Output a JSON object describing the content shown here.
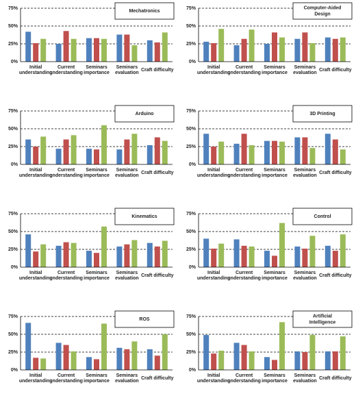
{
  "chart_data": [
    {
      "type": "bar",
      "title": "Mechatronics",
      "categories": [
        "Initial understanding",
        "Current understanding",
        "Seminars importance",
        "Seminars evaluation",
        "Craft difficulty"
      ],
      "series": [
        {
          "color": "#4f81bd",
          "values": [
            42,
            25,
            33,
            38,
            30
          ]
        },
        {
          "color": "#c0504d",
          "values": [
            26,
            43,
            33,
            38,
            27
          ]
        },
        {
          "color": "#9bbb59",
          "values": [
            32,
            32,
            32,
            23,
            41
          ]
        }
      ],
      "ylim": [
        0,
        75
      ],
      "yticks": [
        {
          "value": 0,
          "label": "0%"
        },
        {
          "value": 25,
          "label": "25%"
        },
        {
          "value": 50,
          "label": "50%"
        },
        {
          "value": 75,
          "label": "75%"
        }
      ],
      "grid": true
    },
    {
      "type": "bar",
      "title": "Computer-Aided Design",
      "categories": [
        "Initial understanding",
        "Current understanding",
        "Seminars importance",
        "Seminars evaluation",
        "Craft difficulty"
      ],
      "series": [
        {
          "color": "#4f81bd",
          "values": [
            28,
            23,
            25,
            32,
            34
          ]
        },
        {
          "color": "#c0504d",
          "values": [
            26,
            32,
            41,
            41,
            32
          ]
        },
        {
          "color": "#9bbb59",
          "values": [
            46,
            45,
            34,
            26,
            34
          ]
        }
      ],
      "ylim": [
        0,
        75
      ],
      "yticks": [
        {
          "value": 0,
          "label": "0%"
        },
        {
          "value": 25,
          "label": "25%"
        },
        {
          "value": 50,
          "label": "50%"
        },
        {
          "value": 75,
          "label": "75%"
        }
      ],
      "grid": true
    },
    {
      "type": "bar",
      "title": "Arduino",
      "categories": [
        "Initial understanding",
        "Current understanding",
        "Seminars importance",
        "Seminars evaluation",
        "Craft difficulty"
      ],
      "series": [
        {
          "color": "#4f81bd",
          "values": [
            35,
            22,
            22,
            21,
            27
          ]
        },
        {
          "color": "#c0504d",
          "values": [
            25,
            35,
            21,
            35,
            38
          ]
        },
        {
          "color": "#9bbb59",
          "values": [
            39,
            41,
            55,
            43,
            33
          ]
        }
      ],
      "ylim": [
        0,
        75
      ],
      "yticks": [
        {
          "value": 0,
          "label": "0%"
        },
        {
          "value": 25,
          "label": "25%"
        },
        {
          "value": 50,
          "label": "50%"
        },
        {
          "value": 75,
          "label": "75%"
        }
      ],
      "grid": true
    },
    {
      "type": "bar",
      "title": "3D Printing",
      "categories": [
        "Initial understanding",
        "Current understanding",
        "Seminars importance",
        "Seminars evaluation",
        "Craft difficulty"
      ],
      "series": [
        {
          "color": "#4f81bd",
          "values": [
            43,
            29,
            33,
            38,
            43
          ]
        },
        {
          "color": "#c0504d",
          "values": [
            25,
            43,
            33,
            38,
            35
          ]
        },
        {
          "color": "#9bbb59",
          "values": [
            32,
            27,
            32,
            23,
            21
          ]
        }
      ],
      "ylim": [
        0,
        75
      ],
      "yticks": [
        {
          "value": 0,
          "label": "0%"
        },
        {
          "value": 25,
          "label": "25%"
        },
        {
          "value": 50,
          "label": "50%"
        },
        {
          "value": 75,
          "label": "75%"
        }
      ],
      "grid": true
    },
    {
      "type": "bar",
      "title": "Kinematics",
      "categories": [
        "Initial understanding",
        "Current understanding",
        "Seminars importance",
        "Seminars evaluation",
        "Craft difficulty"
      ],
      "series": [
        {
          "color": "#4f81bd",
          "values": [
            46,
            30,
            23,
            29,
            34
          ]
        },
        {
          "color": "#c0504d",
          "values": [
            22,
            35,
            20,
            32,
            29
          ]
        },
        {
          "color": "#9bbb59",
          "values": [
            32,
            34,
            57,
            38,
            37
          ]
        }
      ],
      "ylim": [
        0,
        75
      ],
      "yticks": [
        {
          "value": 0,
          "label": "0%"
        },
        {
          "value": 25,
          "label": "25%"
        },
        {
          "value": 50,
          "label": "50%"
        },
        {
          "value": 75,
          "label": "75%"
        }
      ],
      "grid": true
    },
    {
      "type": "bar",
      "title": "Control",
      "categories": [
        "Initial understanding",
        "Current understanding",
        "Seminars importance",
        "Seminars evaluation",
        "Craft difficulty"
      ],
      "series": [
        {
          "color": "#4f81bd",
          "values": [
            40,
            39,
            23,
            29,
            30
          ]
        },
        {
          "color": "#c0504d",
          "values": [
            26,
            30,
            16,
            26,
            23
          ]
        },
        {
          "color": "#9bbb59",
          "values": [
            33,
            29,
            62,
            44,
            46
          ]
        }
      ],
      "ylim": [
        0,
        75
      ],
      "yticks": [
        {
          "value": 0,
          "label": "0%"
        },
        {
          "value": 25,
          "label": "25%"
        },
        {
          "value": 50,
          "label": "50%"
        },
        {
          "value": 75,
          "label": "75%"
        }
      ],
      "grid": true
    },
    {
      "type": "bar",
      "title": "ROS",
      "categories": [
        "Initial understanding",
        "Current understanding",
        "Seminars importance",
        "Seminars evaluation",
        "Craft difficulty"
      ],
      "series": [
        {
          "color": "#4f81bd",
          "values": [
            66,
            38,
            18,
            31,
            29
          ]
        },
        {
          "color": "#c0504d",
          "values": [
            17,
            35,
            15,
            29,
            20
          ]
        },
        {
          "color": "#9bbb59",
          "values": [
            16,
            26,
            65,
            40,
            50
          ]
        }
      ],
      "ylim": [
        0,
        75
      ],
      "yticks": [
        {
          "value": 0,
          "label": "0%"
        },
        {
          "value": 25,
          "label": "25%"
        },
        {
          "value": 50,
          "label": "50%"
        },
        {
          "value": 75,
          "label": "75%"
        }
      ],
      "grid": true
    },
    {
      "type": "bar",
      "title": "Artificial Intelligence",
      "categories": [
        "Initial understanding",
        "Current understanding",
        "Seminars importance",
        "Seminars evaluation",
        "Craft difficulty"
      ],
      "series": [
        {
          "color": "#4f81bd",
          "values": [
            49,
            38,
            18,
            26,
            26
          ]
        },
        {
          "color": "#c0504d",
          "values": [
            23,
            35,
            14,
            25,
            26
          ]
        },
        {
          "color": "#9bbb59",
          "values": [
            27,
            26,
            67,
            49,
            47
          ]
        }
      ],
      "ylim": [
        0,
        75
      ],
      "yticks": [
        {
          "value": 0,
          "label": "0%"
        },
        {
          "value": 25,
          "label": "25%"
        },
        {
          "value": 50,
          "label": "50%"
        },
        {
          "value": 75,
          "label": "75%"
        }
      ],
      "grid": true
    }
  ]
}
